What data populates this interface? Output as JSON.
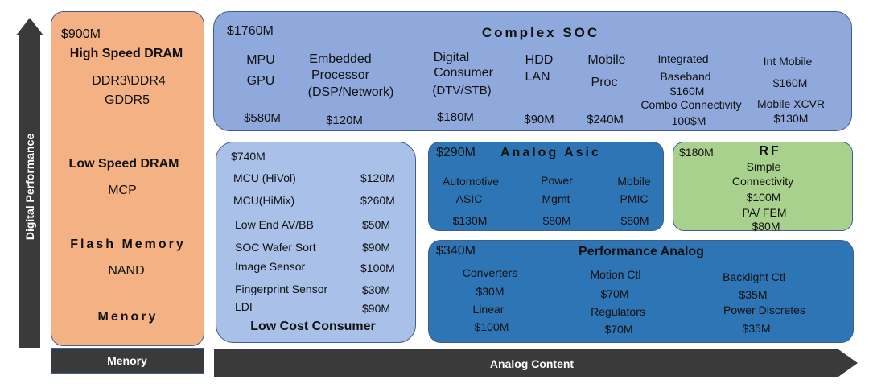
{
  "axes": {
    "y_label": "Digital Performance",
    "x_label_left": "Menory",
    "x_label_right": "Analog Content"
  },
  "memory": {
    "total": "$900M",
    "hs_title": "High Speed DRAM",
    "hs_line1": "DDR3\\DDR4",
    "hs_line2": "GDDR5",
    "ls_title": "Low Speed DRAM",
    "ls_item": "MCP",
    "flash_title": "Flash Memory",
    "flash_item": "NAND",
    "footer": "Menory"
  },
  "soc": {
    "total": "$1760M",
    "title": "Complex SOC",
    "c1_l1": "MPU",
    "c1_l2": "GPU",
    "c1_v": "$580M",
    "c2_l1": "Embedded",
    "c2_l2": "Processor",
    "c2_l3": "(DSP/Network)",
    "c2_v": "$120M",
    "c3_l1": "Digital",
    "c3_l2": "Consumer",
    "c3_l3": "(DTV/STB)",
    "c3_v": "$180M",
    "c4_l1": "HDD",
    "c4_l2": "LAN",
    "c4_v": "$90M",
    "c5_l1": "Mobile",
    "c5_l2": "Proc",
    "c5_v": "$240M",
    "c6_l1": "Integrated",
    "c6_l2": "Baseband",
    "c6_l3": "$160M",
    "c6_l4": "Combo  Connectivity",
    "c6_v": "100$M",
    "c7_l1": "Int Mobile",
    "c7_l2": "$160M",
    "c7_l3": "Mobile XCVR",
    "c7_v": "$130M"
  },
  "low_cost": {
    "total": "$740M",
    "title": "Low Cost Consumer",
    "items": [
      {
        "name": "MCU (HiVol)",
        "value": "$120M"
      },
      {
        "name": "MCU(HiMix)",
        "value": "$260M"
      },
      {
        "name": "Low End AV/BB",
        "value": "$50M"
      },
      {
        "name": "SOC Wafer Sort",
        "value": "$90M"
      },
      {
        "name": "Image Sensor",
        "value": "$100M"
      },
      {
        "name": "Fingerprint Sensor",
        "value": "$30M"
      },
      {
        "name": "LDI",
        "value": "$90M"
      }
    ]
  },
  "asic": {
    "total": "$290M",
    "title": "Analog Asic",
    "c1_l1": "Automotive",
    "c1_l2": "ASIC",
    "c1_v": "$130M",
    "c2_l1": "Power",
    "c2_l2": "Mgmt",
    "c2_v": "$80M",
    "c3_l1": "Mobile",
    "c3_l2": "PMIC",
    "c3_v": "$80M"
  },
  "rf": {
    "total": "$180M",
    "title": "RF",
    "l1": "Simple",
    "l2": "Connectivity",
    "l3": "$100M",
    "l4": "PA/ FEM",
    "l5": "$80M"
  },
  "perf": {
    "total": "$340M",
    "title": "Performance Analog",
    "c1_l1": "Converters",
    "c1_l2": "$30M",
    "c1_l3": "Linear",
    "c1_l4": "$100M",
    "c2_l1": "Motion Ctl",
    "c2_l2": "$70M",
    "c2_l3": "Regulators",
    "c2_l4": "$70M",
    "c3_l1": "Backlight Ctl",
    "c3_l2": "$35M",
    "c3_l3": "Power Discretes",
    "c3_l4": "$35M"
  },
  "colors": {
    "memory": "#f4b183",
    "complex_soc": "#8fa9dc",
    "low_cost": "#a9c0e8",
    "analog_asic": "#2e75b6",
    "rf": "#a9d18e",
    "performance_analog": "#2e75b6",
    "arrow": "#3a3a3a"
  }
}
